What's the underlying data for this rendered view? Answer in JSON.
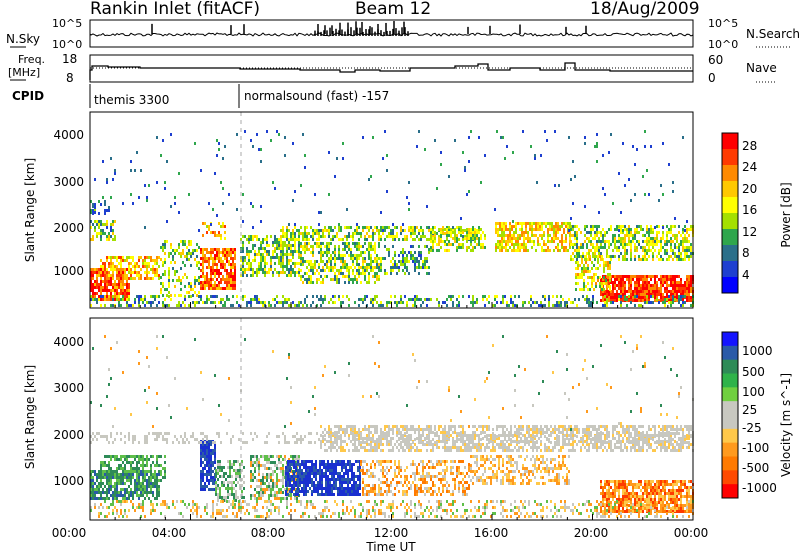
{
  "header": {
    "station": "Rankin Inlet (fitACF)",
    "beam": "Beam 12",
    "date": "18/Aug/2009"
  },
  "noise_panel": {
    "left_label": "N.Sky",
    "right_label": "N.Search",
    "left_ticks": [
      "10^5",
      "10^0"
    ],
    "right_ticks": [
      "10^5",
      "10^0"
    ]
  },
  "freq_panel": {
    "left_label_1": "Freq.",
    "left_label_2": "[MHz]",
    "left_ticks": [
      "18",
      "8"
    ],
    "right_label": "Nave",
    "right_ticks": [
      "60",
      "0"
    ]
  },
  "cpid_panel": {
    "label": "CPID",
    "modes": [
      "themis 3300",
      "normalsound (fast) -157"
    ]
  },
  "power_panel": {
    "ylabel": "Slant Range [km]",
    "yticks": [
      "4000",
      "3000",
      "2000",
      "1000"
    ],
    "colorbar_label": "Power [dB]",
    "colorbar_ticks": [
      "28",
      "24",
      "20",
      "16",
      "12",
      "8",
      "4"
    ],
    "colorbar_colors": [
      "#ff0000",
      "#ff3a00",
      "#ff8a00",
      "#ffc800",
      "#ffff00",
      "#a4e000",
      "#2fa64d",
      "#2a6f8a",
      "#1e3fd0",
      "#0000ff"
    ]
  },
  "velocity_panel": {
    "ylabel": "Slant Range [km]",
    "yticks": [
      "4000",
      "3000",
      "2000",
      "1000"
    ],
    "colorbar_label": "Velocity [m s^-1]",
    "colorbar_ticks": [
      "1000",
      "500",
      "100",
      "25",
      "-25",
      "-100",
      "-500",
      "-1000"
    ],
    "colorbar_colors": [
      "#1414ff",
      "#2a5aa8",
      "#2e8b57",
      "#2fb34a",
      "#70d040",
      "#c8c8c0",
      "#c8c8c0",
      "#ffc84a",
      "#ff9a1e",
      "#ff7a00",
      "#ff4a00",
      "#ff0000"
    ]
  },
  "x_axis": {
    "label": "Time UT",
    "ticks": [
      "00:00",
      "04:00",
      "08:00",
      "12:00",
      "16:00",
      "20:00",
      "00:00"
    ]
  }
}
